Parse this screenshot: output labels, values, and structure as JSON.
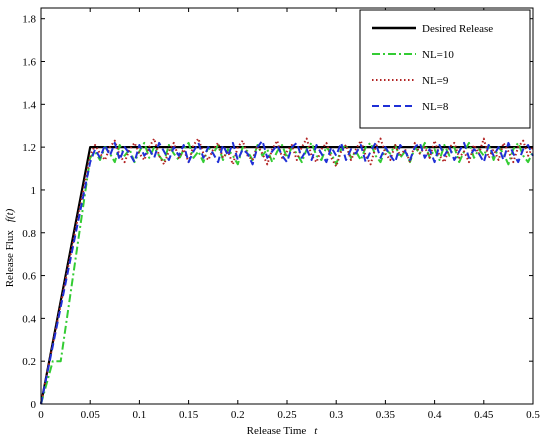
{
  "chart_data": {
    "type": "line",
    "xlabel": "Release Time",
    "xlabel_symbol": "t",
    "ylabel": "Release Flux",
    "ylabel_symbol": "f(t)",
    "xlim": [
      0,
      0.5
    ],
    "ylim": [
      0,
      1.85
    ],
    "x_ticks": [
      "0",
      "0.05",
      "0.1",
      "0.15",
      "0.2",
      "0.25",
      "0.3",
      "0.35",
      "0.4",
      "0.45",
      "0.5"
    ],
    "y_ticks": [
      "0",
      "0.2",
      "0.4",
      "0.6",
      "0.8",
      "1",
      "1.2",
      "1.4",
      "1.6",
      "1.8"
    ],
    "grid": false,
    "legend_position": "top-right",
    "series": [
      {
        "name": "Desired Release",
        "color": "#000000",
        "style": "solid",
        "x": [
          0,
          0.05,
          0.5
        ],
        "y": [
          0,
          1.2,
          1.2
        ]
      },
      {
        "name": "NL=10",
        "color": "#33cc33",
        "style": "dashdot",
        "x": [
          0,
          0.012,
          0.02,
          0.05,
          0.055,
          0.06,
          0.065,
          0.07,
          0.075,
          0.08,
          0.085,
          0.09,
          0.095,
          0.1,
          0.105,
          0.11,
          0.115,
          0.12,
          0.125,
          0.13,
          0.135,
          0.14,
          0.145,
          0.15,
          0.155,
          0.16,
          0.165,
          0.17,
          0.175,
          0.18,
          0.185,
          0.19,
          0.195,
          0.2,
          0.205,
          0.21,
          0.215,
          0.22,
          0.225,
          0.23,
          0.235,
          0.24,
          0.245,
          0.25,
          0.255,
          0.26,
          0.265,
          0.27,
          0.275,
          0.28,
          0.285,
          0.29,
          0.295,
          0.3,
          0.305,
          0.31,
          0.315,
          0.32,
          0.325,
          0.33,
          0.335,
          0.34,
          0.345,
          0.35,
          0.355,
          0.36,
          0.365,
          0.37,
          0.375,
          0.38,
          0.385,
          0.39,
          0.395,
          0.4,
          0.405,
          0.41,
          0.415,
          0.42,
          0.425,
          0.43,
          0.435,
          0.44,
          0.445,
          0.45,
          0.455,
          0.46,
          0.465,
          0.47,
          0.475,
          0.48,
          0.485,
          0.49,
          0.495,
          0.5
        ],
        "y": [
          0,
          0.2,
          0.2,
          1.15,
          1.18,
          1.14,
          1.2,
          1.17,
          1.13,
          1.21,
          1.16,
          1.19,
          1.13,
          1.18,
          1.22,
          1.15,
          1.2,
          1.16,
          1.13,
          1.21,
          1.17,
          1.14,
          1.19,
          1.22,
          1.15,
          1.18,
          1.13,
          1.2,
          1.17,
          1.21,
          1.14,
          1.19,
          1.16,
          1.12,
          1.2,
          1.18,
          1.14,
          1.21,
          1.16,
          1.19,
          1.13,
          1.18,
          1.21,
          1.15,
          1.2,
          1.17,
          1.13,
          1.19,
          1.22,
          1.16,
          1.14,
          1.2,
          1.17,
          1.12,
          1.19,
          1.21,
          1.15,
          1.18,
          1.14,
          1.2,
          1.22,
          1.16,
          1.13,
          1.19,
          1.17,
          1.21,
          1.15,
          1.18,
          1.13,
          1.2,
          1.17,
          1.22,
          1.15,
          1.19,
          1.14,
          1.21,
          1.16,
          1.2,
          1.13,
          1.18,
          1.22,
          1.15,
          1.19,
          1.16,
          1.21,
          1.14,
          1.2,
          1.17,
          1.12,
          1.19,
          1.22,
          1.16,
          1.13,
          1.18
        ]
      },
      {
        "name": "NL=9",
        "color": "#b22222",
        "style": "dotted",
        "x": [
          0,
          0.05,
          0.055,
          0.06,
          0.065,
          0.07,
          0.075,
          0.08,
          0.085,
          0.09,
          0.095,
          0.1,
          0.105,
          0.11,
          0.115,
          0.12,
          0.125,
          0.13,
          0.135,
          0.14,
          0.145,
          0.15,
          0.155,
          0.16,
          0.165,
          0.17,
          0.175,
          0.18,
          0.185,
          0.19,
          0.195,
          0.2,
          0.205,
          0.21,
          0.215,
          0.22,
          0.225,
          0.23,
          0.235,
          0.24,
          0.245,
          0.25,
          0.255,
          0.26,
          0.265,
          0.27,
          0.275,
          0.28,
          0.285,
          0.29,
          0.295,
          0.3,
          0.305,
          0.31,
          0.315,
          0.32,
          0.325,
          0.33,
          0.335,
          0.34,
          0.345,
          0.35,
          0.355,
          0.36,
          0.365,
          0.37,
          0.375,
          0.38,
          0.385,
          0.39,
          0.395,
          0.4,
          0.405,
          0.41,
          0.415,
          0.42,
          0.425,
          0.43,
          0.435,
          0.44,
          0.445,
          0.45,
          0.455,
          0.46,
          0.465,
          0.47,
          0.475,
          0.48,
          0.485,
          0.49,
          0.495,
          0.5
        ],
        "y": [
          0,
          1.16,
          1.21,
          1.17,
          1.14,
          1.2,
          1.23,
          1.16,
          1.13,
          1.19,
          1.22,
          1.17,
          1.14,
          1.2,
          1.24,
          1.16,
          1.12,
          1.18,
          1.22,
          1.15,
          1.19,
          1.13,
          1.21,
          1.24,
          1.17,
          1.14,
          1.19,
          1.22,
          1.15,
          1.18,
          1.12,
          1.2,
          1.23,
          1.16,
          1.14,
          1.21,
          1.17,
          1.12,
          1.19,
          1.23,
          1.15,
          1.18,
          1.21,
          1.14,
          1.2,
          1.24,
          1.16,
          1.13,
          1.19,
          1.22,
          1.15,
          1.11,
          1.18,
          1.21,
          1.14,
          1.19,
          1.23,
          1.16,
          1.12,
          1.2,
          1.24,
          1.17,
          1.14,
          1.21,
          1.16,
          1.19,
          1.13,
          1.22,
          1.17,
          1.2,
          1.15,
          1.23,
          1.16,
          1.13,
          1.2,
          1.22,
          1.15,
          1.18,
          1.13,
          1.21,
          1.17,
          1.24,
          1.15,
          1.19,
          1.14,
          1.22,
          1.18,
          1.13,
          1.2,
          1.23,
          1.16,
          1.2
        ]
      },
      {
        "name": "NL=8",
        "color": "#1f2fd6",
        "style": "dashed",
        "x": [
          0,
          0.05,
          0.055,
          0.06,
          0.065,
          0.07,
          0.075,
          0.08,
          0.085,
          0.09,
          0.095,
          0.1,
          0.105,
          0.11,
          0.115,
          0.12,
          0.125,
          0.13,
          0.135,
          0.14,
          0.145,
          0.15,
          0.155,
          0.16,
          0.165,
          0.17,
          0.175,
          0.18,
          0.185,
          0.19,
          0.195,
          0.2,
          0.205,
          0.21,
          0.215,
          0.22,
          0.225,
          0.23,
          0.235,
          0.24,
          0.245,
          0.25,
          0.255,
          0.26,
          0.265,
          0.27,
          0.275,
          0.28,
          0.285,
          0.29,
          0.295,
          0.3,
          0.305,
          0.31,
          0.315,
          0.32,
          0.325,
          0.33,
          0.335,
          0.34,
          0.345,
          0.35,
          0.355,
          0.36,
          0.365,
          0.37,
          0.375,
          0.38,
          0.385,
          0.39,
          0.395,
          0.4,
          0.405,
          0.41,
          0.415,
          0.42,
          0.425,
          0.43,
          0.435,
          0.44,
          0.445,
          0.45,
          0.455,
          0.46,
          0.465,
          0.47,
          0.475,
          0.48,
          0.485,
          0.49,
          0.495,
          0.5
        ],
        "y": [
          0,
          1.13,
          1.19,
          1.15,
          1.21,
          1.16,
          1.22,
          1.14,
          1.2,
          1.17,
          1.13,
          1.21,
          1.16,
          1.19,
          1.15,
          1.22,
          1.18,
          1.14,
          1.2,
          1.16,
          1.21,
          1.13,
          1.18,
          1.22,
          1.15,
          1.2,
          1.17,
          1.13,
          1.21,
          1.16,
          1.22,
          1.14,
          1.19,
          1.17,
          1.12,
          1.2,
          1.23,
          1.15,
          1.18,
          1.21,
          1.16,
          1.13,
          1.2,
          1.22,
          1.15,
          1.19,
          1.14,
          1.21,
          1.17,
          1.13,
          1.2,
          1.16,
          1.22,
          1.14,
          1.19,
          1.17,
          1.21,
          1.13,
          1.18,
          1.22,
          1.15,
          1.2,
          1.16,
          1.13,
          1.21,
          1.18,
          1.14,
          1.2,
          1.22,
          1.15,
          1.19,
          1.13,
          1.21,
          1.16,
          1.2,
          1.14,
          1.18,
          1.22,
          1.15,
          1.19,
          1.17,
          1.13,
          1.21,
          1.16,
          1.2,
          1.14,
          1.22,
          1.17,
          1.13,
          1.19,
          1.21,
          1.16
        ]
      }
    ]
  }
}
